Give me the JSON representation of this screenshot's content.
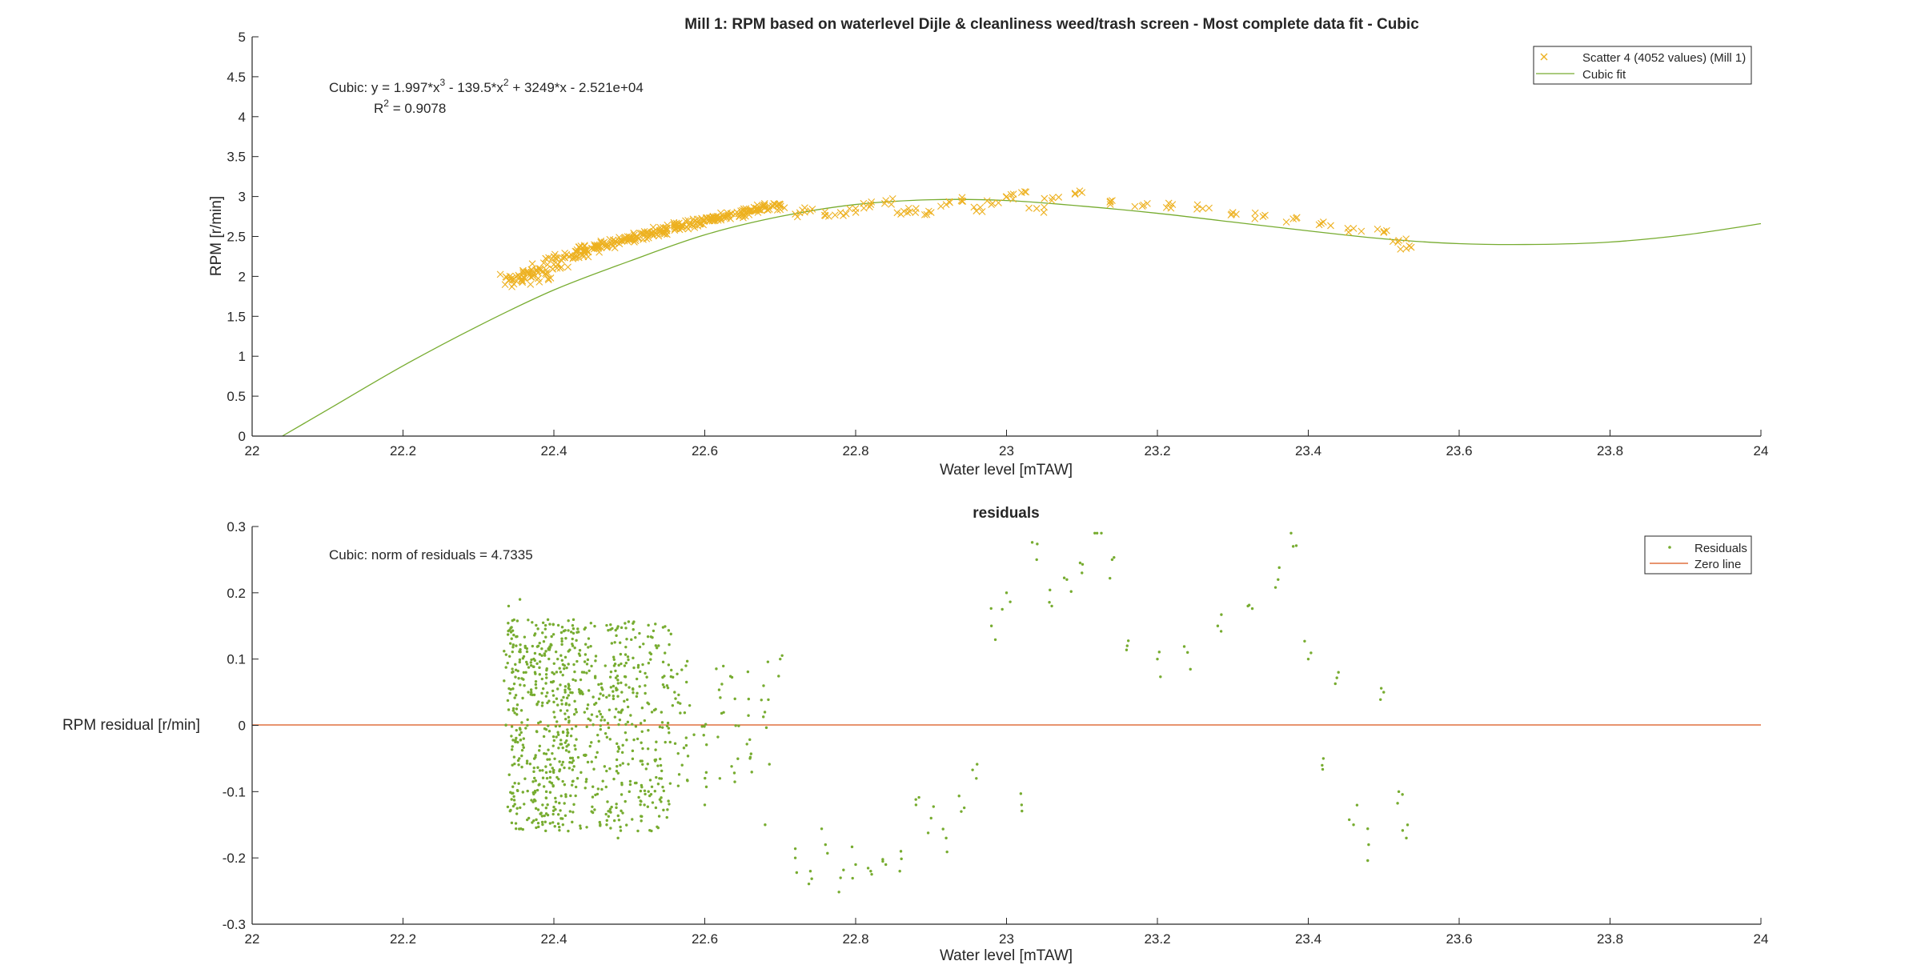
{
  "colors": {
    "scatter": "#EDB120",
    "fit": "#77AC30",
    "residual": "#77AC30",
    "zero_line": "#D95319",
    "axis": "#262626",
    "background": "#FFFFFF"
  },
  "top": {
    "title": "Mill 1: RPM based on waterlevel Dijle & cleanliness weed/trash screen - Most complete data fit - Cubic",
    "xlabel": "Water level [mTAW]",
    "ylabel": "RPM [r/min]",
    "annotation_line1": "Cubic:  y = 1.997*x",
    "annotation_sup1": "3",
    "annotation_mid1": " - 139.5*x",
    "annotation_sup2": "2",
    "annotation_end1": " + 3249*x - 2.521e+04",
    "annotation_r2_label": "R",
    "annotation_r2_sup": "2",
    "annotation_r2_value": " = 0.9078",
    "legend": {
      "scatter_label": "Scatter 4 (4052 values) (Mill 1)",
      "fit_label": "Cubic fit"
    }
  },
  "bottom": {
    "title": "residuals",
    "xlabel": "Water level [mTAW]",
    "ylabel": "RPM residual [r/min]",
    "annotation": "Cubic: norm of residuals = 4.7335",
    "legend": {
      "residuals_label": "Residuals",
      "zero_label": "Zero line"
    }
  },
  "chart_data": [
    {
      "type": "scatter",
      "title": "Mill 1: RPM based on waterlevel Dijle & cleanliness weed/trash screen - Most complete data fit - Cubic",
      "xlabel": "Water level [mTAW]",
      "ylabel": "RPM [r/min]",
      "xlim": [
        22,
        24
      ],
      "ylim": [
        0,
        5
      ],
      "xticks": [
        "22",
        "22.2",
        "22.4",
        "22.6",
        "22.8",
        "23",
        "23.2",
        "23.4",
        "23.6",
        "23.8",
        "24"
      ],
      "yticks": [
        "0",
        "0.5",
        "1",
        "1.5",
        "2",
        "2.5",
        "3",
        "3.5",
        "4",
        "4.5",
        "5"
      ],
      "grid": false,
      "legend_position": "top-right",
      "fit": {
        "name": "Cubic fit",
        "model": "cubic",
        "coefficients": [
          1.997,
          -139.5,
          3249,
          -25210
        ],
        "r_squared": 0.9078,
        "sampled": {
          "x": [
            22.04,
            22.1,
            22.2,
            22.3,
            22.4,
            22.5,
            22.6,
            22.7,
            22.8,
            22.9,
            23.0,
            23.1,
            23.2,
            23.3,
            23.4,
            23.5,
            23.6,
            23.7,
            23.8,
            23.9,
            24.0
          ],
          "y": [
            0.0,
            0.33,
            0.88,
            1.38,
            1.83,
            2.19,
            2.52,
            2.75,
            2.9,
            2.96,
            2.95,
            2.88,
            2.79,
            2.68,
            2.57,
            2.47,
            2.41,
            2.4,
            2.43,
            2.52,
            2.66
          ]
        }
      },
      "series": [
        {
          "name": "Scatter 4 (4052 values) (Mill 1)",
          "marker": "x",
          "x": [
            22.34,
            22.35,
            22.36,
            22.37,
            22.38,
            22.39,
            22.4,
            22.41,
            22.42,
            22.43,
            22.44,
            22.45,
            22.46,
            22.47,
            22.48,
            22.49,
            22.5,
            22.51,
            22.52,
            22.53,
            22.54,
            22.55,
            22.56,
            22.57,
            22.58,
            22.59,
            22.6,
            22.61,
            22.62,
            22.63,
            22.64,
            22.65,
            22.66,
            22.67,
            22.68,
            22.69,
            22.7,
            22.72,
            22.74,
            22.76,
            22.78,
            22.8,
            22.82,
            22.84,
            22.86,
            22.88,
            22.9,
            22.92,
            22.94,
            22.96,
            22.98,
            23.0,
            23.02,
            23.04,
            23.06,
            23.1,
            23.14,
            23.18,
            23.22,
            23.26,
            23.3,
            23.34,
            23.38,
            23.42,
            23.46,
            23.5,
            23.52,
            23.53
          ],
          "y": [
            1.95,
            2.0,
            1.98,
            2.05,
            2.1,
            2.02,
            2.15,
            2.2,
            2.25,
            2.3,
            2.33,
            2.35,
            2.38,
            2.4,
            2.42,
            2.45,
            2.47,
            2.5,
            2.52,
            2.55,
            2.57,
            2.6,
            2.62,
            2.64,
            2.66,
            2.68,
            2.7,
            2.72,
            2.74,
            2.76,
            2.78,
            2.8,
            2.82,
            2.84,
            2.86,
            2.88,
            2.9,
            2.78,
            2.82,
            2.76,
            2.8,
            2.85,
            2.9,
            2.95,
            2.78,
            2.85,
            2.8,
            2.9,
            2.95,
            2.82,
            2.9,
            3.0,
            3.05,
            2.85,
            2.95,
            3.05,
            2.95,
            2.88,
            2.9,
            2.85,
            2.8,
            2.75,
            2.72,
            2.68,
            2.6,
            2.55,
            2.45,
            2.35
          ]
        }
      ]
    },
    {
      "type": "scatter",
      "title": "residuals",
      "xlabel": "Water level [mTAW]",
      "ylabel": "RPM residual [r/min]",
      "xlim": [
        22,
        24
      ],
      "ylim": [
        -0.3,
        0.3
      ],
      "xticks": [
        "22",
        "22.2",
        "22.4",
        "22.6",
        "22.8",
        "23",
        "23.2",
        "23.4",
        "23.6",
        "23.8",
        "24"
      ],
      "yticks": [
        "-0.3",
        "-0.2",
        "-0.1",
        "0",
        "0.1",
        "0.2",
        "0.3"
      ],
      "grid": false,
      "legend_position": "top-right",
      "norm_of_residuals": 4.7335,
      "series": [
        {
          "name": "Residuals",
          "marker": "dot",
          "x": [
            22.34,
            22.345,
            22.35,
            22.355,
            22.36,
            22.37,
            22.375,
            22.38,
            22.385,
            22.39,
            22.395,
            22.4,
            22.405,
            22.41,
            22.415,
            22.42,
            22.425,
            22.43,
            22.44,
            22.45,
            22.46,
            22.47,
            22.48,
            22.485,
            22.49,
            22.5,
            22.51,
            22.52,
            22.53,
            22.54,
            22.55,
            22.56,
            22.57,
            22.58,
            22.6,
            22.62,
            22.64,
            22.66,
            22.68,
            22.7,
            22.72,
            22.74,
            22.76,
            22.78,
            22.8,
            22.82,
            22.84,
            22.86,
            22.88,
            22.9,
            22.92,
            22.94,
            22.96,
            22.98,
            23.0,
            23.02,
            23.04,
            23.06,
            23.08,
            23.1,
            23.12,
            23.14,
            23.16,
            23.2,
            23.24,
            23.28,
            23.32,
            23.36,
            23.38,
            23.4,
            23.42,
            23.44,
            23.46,
            23.48,
            23.5,
            23.52,
            23.53
          ],
          "y": [
            0.18,
            -0.06,
            0.12,
            0.19,
            -0.02,
            0.05,
            0.08,
            -0.09,
            -0.12,
            -0.1,
            -0.07,
            0.02,
            0.1,
            0.14,
            0.05,
            -0.04,
            0.12,
            0.02,
            0.08,
            -0.13,
            0.04,
            -0.15,
            0.09,
            -0.17,
            0.05,
            -0.1,
            0.07,
            -0.12,
            0.02,
            -0.08,
            0.06,
            0.05,
            -0.06,
            0.03,
            -0.12,
            -0.08,
            0.04,
            -0.05,
            -0.15,
            0.1,
            -0.2,
            -0.22,
            -0.18,
            -0.23,
            -0.21,
            -0.22,
            -0.21,
            -0.19,
            -0.12,
            -0.14,
            -0.17,
            -0.13,
            -0.08,
            0.15,
            0.2,
            -0.12,
            0.25,
            0.18,
            0.22,
            0.23,
            0.29,
            0.25,
            0.12,
            0.1,
            0.11,
            0.15,
            0.18,
            0.22,
            0.27,
            0.1,
            -0.05,
            0.08,
            -0.15,
            -0.18,
            0.05,
            -0.1,
            -0.17
          ]
        },
        {
          "name": "Zero line",
          "marker": "line",
          "x": [
            22,
            24
          ],
          "y": [
            0,
            0
          ]
        }
      ]
    }
  ]
}
